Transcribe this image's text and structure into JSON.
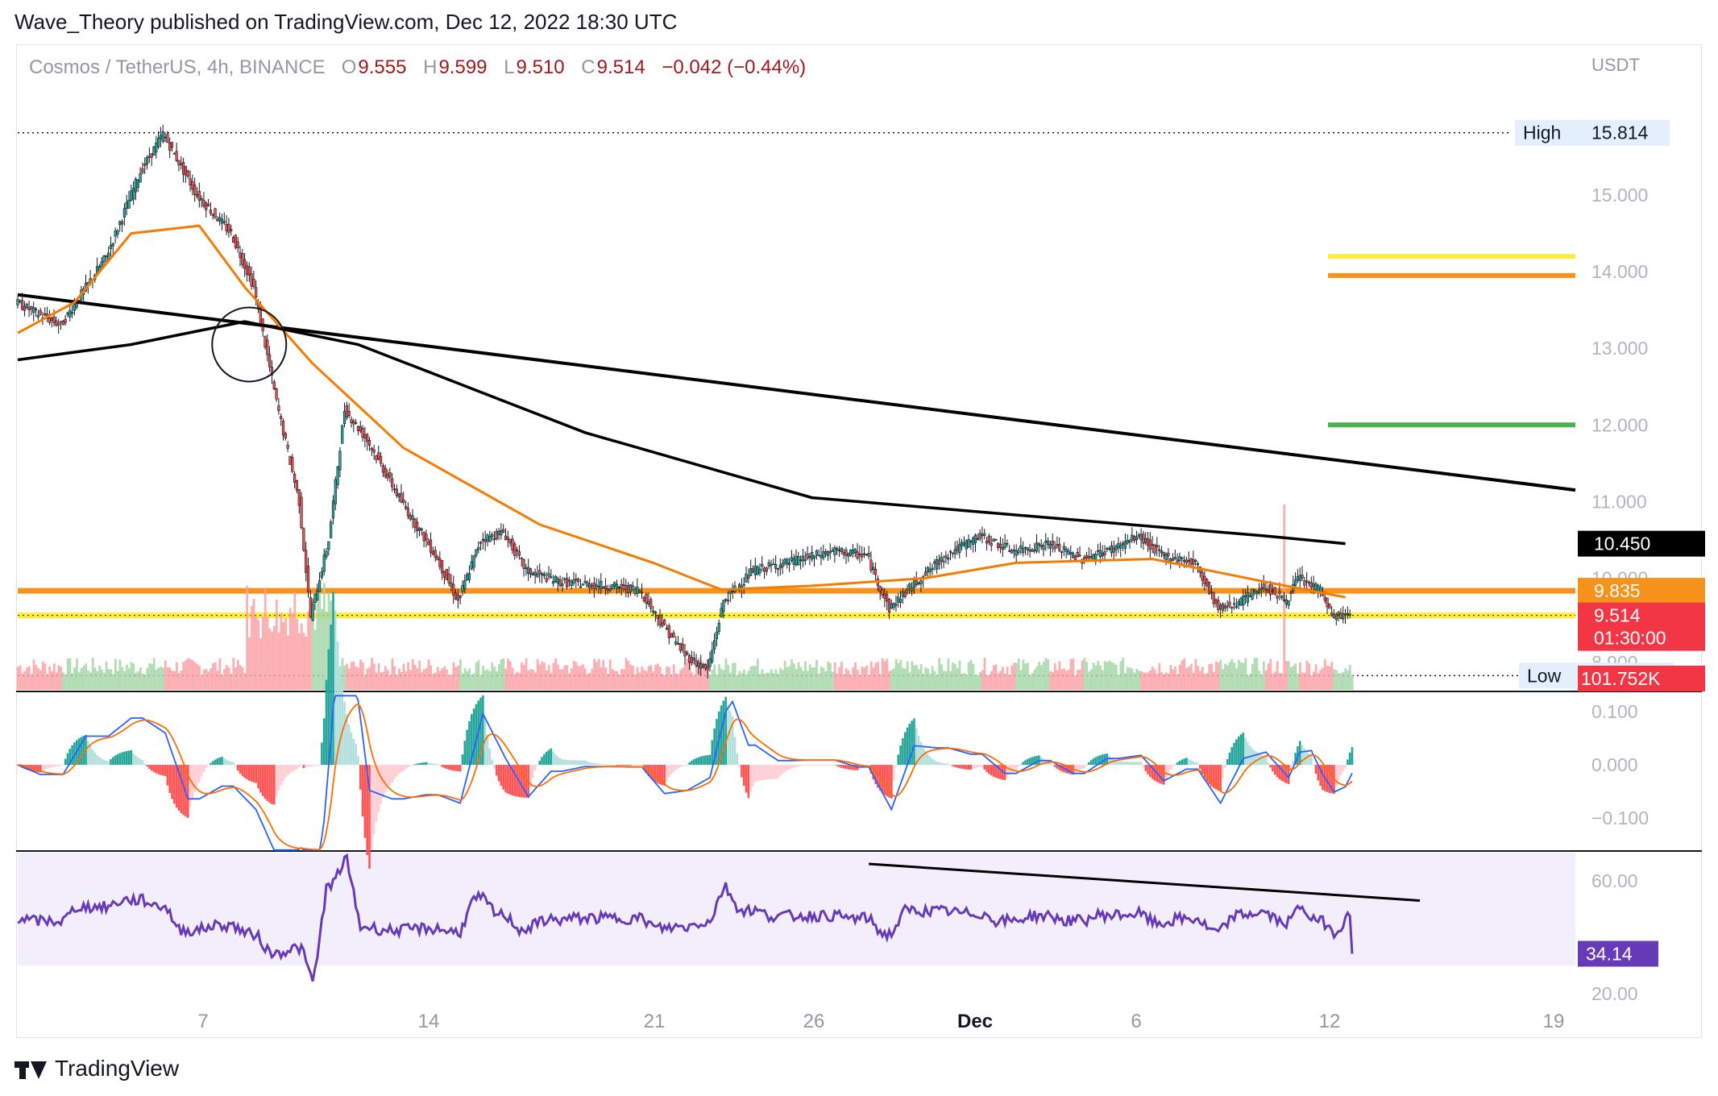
{
  "header": {
    "title": "Wave_Theory published on TradingView.com, Dec 12, 2022 18:30 UTC"
  },
  "symbol": {
    "name": "Cosmos / TetherUS, 4h, BINANCE",
    "open_label": "O",
    "open": "9.555",
    "high_label": "H",
    "high": "9.599",
    "low_label": "L",
    "low": "9.510",
    "close_label": "C",
    "close": "9.514",
    "change": "−0.042 (−0.44%)"
  },
  "footer": {
    "brand": "TradingView"
  },
  "chart_data": [
    {
      "type": "candlestick",
      "currency": "USDT",
      "ylim": [
        8.5,
        16.6
      ],
      "y_ticks": [
        "15.000",
        "14.000",
        "13.000",
        "12.000",
        "11.000",
        "10.000",
        "8.900"
      ],
      "x_ticks": [
        "7",
        "14",
        "21",
        "26",
        "Dec",
        "6",
        "12",
        "19"
      ],
      "high_marker": {
        "label": "High",
        "value": "15.814"
      },
      "low_marker": {
        "label": "Low",
        "value": "8.728"
      },
      "price_tags": [
        {
          "value": "10.450",
          "color": "#000000"
        },
        {
          "value": "9.835",
          "color": "#f7931a"
        },
        {
          "value": "9.514",
          "color": "#f23645",
          "countdown": "01:30:00"
        }
      ],
      "horizontal_levels": [
        {
          "value": 14.2,
          "color": "#ffeb3b"
        },
        {
          "value": 13.95,
          "color": "#f7931a"
        },
        {
          "value": 12.0,
          "color": "#4caf50"
        },
        {
          "value": 9.835,
          "color": "#f7931a"
        },
        {
          "value": 9.514,
          "color": "#ffeb3b"
        }
      ],
      "trendline": {
        "from": 13.7,
        "to": 11.15
      },
      "price_path": [
        [
          0,
          13.6
        ],
        [
          20,
          13.3
        ],
        [
          40,
          14.2
        ],
        [
          55,
          15.3
        ],
        [
          65,
          15.8
        ],
        [
          80,
          15.0
        ],
        [
          95,
          14.5
        ],
        [
          105,
          13.8
        ],
        [
          115,
          12.3
        ],
        [
          125,
          11.0
        ],
        [
          130,
          9.5
        ],
        [
          138,
          10.5
        ],
        [
          145,
          12.2
        ],
        [
          155,
          11.8
        ],
        [
          170,
          11.0
        ],
        [
          185,
          10.3
        ],
        [
          195,
          9.7
        ],
        [
          205,
          10.5
        ],
        [
          215,
          10.6
        ],
        [
          225,
          10.1
        ],
        [
          240,
          9.95
        ],
        [
          260,
          9.9
        ],
        [
          275,
          9.85
        ],
        [
          285,
          9.4
        ],
        [
          295,
          9.0
        ],
        [
          305,
          8.8
        ],
        [
          312,
          9.7
        ],
        [
          325,
          10.1
        ],
        [
          340,
          10.2
        ],
        [
          360,
          10.35
        ],
        [
          375,
          10.3
        ],
        [
          385,
          9.6
        ],
        [
          395,
          9.9
        ],
        [
          410,
          10.3
        ],
        [
          425,
          10.55
        ],
        [
          440,
          10.35
        ],
        [
          455,
          10.45
        ],
        [
          470,
          10.25
        ],
        [
          485,
          10.4
        ],
        [
          495,
          10.55
        ],
        [
          505,
          10.3
        ],
        [
          520,
          10.2
        ],
        [
          530,
          9.6
        ],
        [
          540,
          9.7
        ],
        [
          550,
          9.9
        ],
        [
          560,
          9.7
        ],
        [
          565,
          10.0
        ],
        [
          575,
          9.85
        ],
        [
          580,
          9.5
        ],
        [
          588,
          9.51
        ]
      ],
      "ma_orange": [
        [
          0,
          13.2
        ],
        [
          25,
          13.6
        ],
        [
          50,
          14.5
        ],
        [
          80,
          14.6
        ],
        [
          100,
          13.8
        ],
        [
          130,
          12.8
        ],
        [
          170,
          11.7
        ],
        [
          230,
          10.7
        ],
        [
          280,
          10.2
        ],
        [
          310,
          9.85
        ],
        [
          350,
          9.9
        ],
        [
          400,
          10.0
        ],
        [
          440,
          10.2
        ],
        [
          500,
          10.25
        ],
        [
          550,
          9.95
        ],
        [
          585,
          9.75
        ]
      ],
      "ma_black": [
        [
          0,
          12.85
        ],
        [
          50,
          13.05
        ],
        [
          100,
          13.35
        ],
        [
          150,
          13.05
        ],
        [
          250,
          11.9
        ],
        [
          350,
          11.05
        ],
        [
          450,
          10.8
        ],
        [
          550,
          10.55
        ],
        [
          585,
          10.45
        ]
      ]
    },
    {
      "type": "bar",
      "name": "volume",
      "last_value": "101.752K"
    },
    {
      "type": "histogram+line",
      "name": "MACD",
      "y_ticks": [
        "0.100",
        "0.000",
        "−0.100"
      ],
      "ylim": [
        -0.165,
        0.135
      ]
    },
    {
      "type": "line",
      "name": "RSI",
      "y_ticks": [
        "60.00",
        "20.00"
      ],
      "ylim": [
        18,
        70
      ],
      "band": [
        30,
        70
      ],
      "last_value": "34.14"
    }
  ]
}
